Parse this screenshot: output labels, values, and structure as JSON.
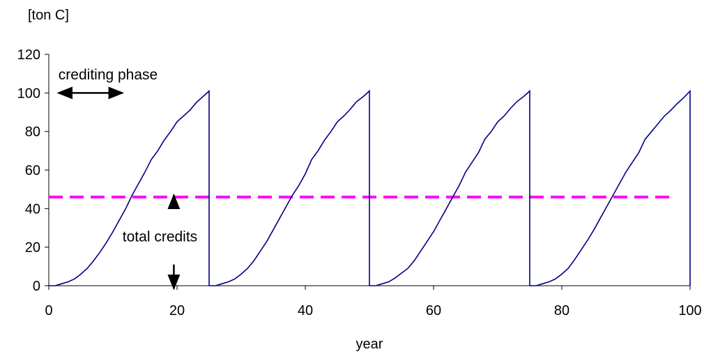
{
  "chart_data": {
    "type": "line",
    "ylabel": "[ton C]",
    "xlabel": "year",
    "xlim": [
      0,
      100
    ],
    "ylim": [
      0,
      120
    ],
    "x_ticks": [
      0,
      20,
      40,
      60,
      80,
      100
    ],
    "y_ticks": [
      0,
      20,
      40,
      60,
      80,
      100,
      120
    ],
    "grid": false,
    "legend": "none",
    "series": [
      {
        "color": "#000080",
        "points": [
          [
            0,
            0
          ],
          [
            1,
            0
          ],
          [
            2,
            1
          ],
          [
            3,
            2
          ],
          [
            4,
            3.5
          ],
          [
            5,
            6
          ],
          [
            6,
            9
          ],
          [
            7,
            13
          ],
          [
            8,
            17.5
          ],
          [
            9,
            22.5
          ],
          [
            10,
            28
          ],
          [
            11,
            34
          ],
          [
            12,
            40
          ],
          [
            13,
            47
          ],
          [
            14,
            53
          ],
          [
            15,
            59
          ],
          [
            16,
            65.5
          ],
          [
            17,
            70
          ],
          [
            18,
            75.5
          ],
          [
            19,
            80
          ],
          [
            20,
            85
          ],
          [
            21,
            88
          ],
          [
            22,
            91
          ],
          [
            23,
            95
          ],
          [
            24,
            98
          ],
          [
            25,
            101
          ],
          [
            25,
            0
          ],
          [
            26,
            0
          ],
          [
            27,
            1
          ],
          [
            28,
            2
          ],
          [
            29,
            3.5
          ],
          [
            30,
            6
          ],
          [
            31,
            9
          ],
          [
            32,
            13
          ],
          [
            33,
            18
          ],
          [
            34,
            23
          ],
          [
            35,
            29
          ],
          [
            36,
            35
          ],
          [
            37,
            41
          ],
          [
            38,
            47
          ],
          [
            39,
            52
          ],
          [
            40,
            58
          ],
          [
            41,
            65.5
          ],
          [
            42,
            70
          ],
          [
            43,
            75.5
          ],
          [
            44,
            80
          ],
          [
            45,
            85
          ],
          [
            46,
            88
          ],
          [
            47,
            91.5
          ],
          [
            48,
            95.5
          ],
          [
            49,
            98
          ],
          [
            50,
            101
          ],
          [
            50,
            0
          ],
          [
            51,
            0
          ],
          [
            52,
            1
          ],
          [
            53,
            2
          ],
          [
            54,
            4
          ],
          [
            55,
            6.5
          ],
          [
            56,
            9
          ],
          [
            57,
            13
          ],
          [
            58,
            18
          ],
          [
            59,
            23
          ],
          [
            60,
            28
          ],
          [
            61,
            34
          ],
          [
            62,
            40
          ],
          [
            63,
            46
          ],
          [
            64,
            52
          ],
          [
            65,
            59
          ],
          [
            66,
            64
          ],
          [
            67,
            69
          ],
          [
            68,
            76
          ],
          [
            69,
            80
          ],
          [
            70,
            85
          ],
          [
            71,
            88
          ],
          [
            72,
            92
          ],
          [
            73,
            95.5
          ],
          [
            74,
            98
          ],
          [
            75,
            101
          ],
          [
            75,
            0
          ],
          [
            76,
            0
          ],
          [
            77,
            1
          ],
          [
            78,
            2
          ],
          [
            79,
            3.5
          ],
          [
            80,
            6
          ],
          [
            81,
            9
          ],
          [
            82,
            13.5
          ],
          [
            83,
            18.5
          ],
          [
            84,
            23.5
          ],
          [
            85,
            29
          ],
          [
            86,
            35
          ],
          [
            87,
            41
          ],
          [
            88,
            47
          ],
          [
            89,
            53
          ],
          [
            90,
            59
          ],
          [
            91,
            64
          ],
          [
            92,
            69
          ],
          [
            93,
            76
          ],
          [
            94,
            80
          ],
          [
            95,
            84
          ],
          [
            96,
            88
          ],
          [
            97,
            91
          ],
          [
            98,
            94.5
          ],
          [
            99,
            97.5
          ],
          [
            100,
            101
          ],
          [
            100,
            0
          ]
        ]
      }
    ],
    "reference_line": {
      "y": 46,
      "x_range": [
        0,
        97
      ],
      "style": "dashed",
      "color": "#ff00ff"
    },
    "annotations": [
      {
        "text": "crediting phase",
        "x": 1.5,
        "y": 107
      },
      {
        "text": "total credits",
        "x": 11.5,
        "y": 23
      }
    ],
    "crediting_phase_arrow": {
      "x_range": [
        1.5,
        11.5
      ],
      "y": 100
    },
    "total_credits_arrows": {
      "x": 19.5,
      "up_from": 41,
      "up_to": 47,
      "down_from": 11,
      "down_to": -1.5
    }
  }
}
